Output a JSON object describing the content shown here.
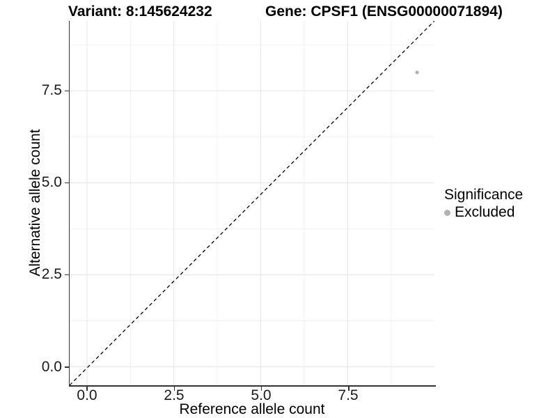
{
  "titles": {
    "variant": "Variant: 8:145624232",
    "gene": "Gene: CPSF1 (ENSG00000071894)"
  },
  "axes": {
    "x": {
      "label": "Reference allele count",
      "tick_labels": [
        "0.0",
        "2.5",
        "5.0",
        "7.5"
      ]
    },
    "y": {
      "label": "Alternative allele count",
      "tick_labels": [
        "7.5",
        "5.0",
        "2.5",
        "0.0"
      ]
    }
  },
  "legend": {
    "title": "Significance",
    "items": [
      {
        "label": "Excluded",
        "marker_color": "#b3b3b3"
      }
    ]
  },
  "chart_data": {
    "type": "scatter",
    "title": "Variant: 8:145624232 | Gene: CPSF1 (ENSG00000071894)",
    "xlabel": "Reference allele count",
    "ylabel": "Alternative allele count",
    "xlim": [
      -0.5,
      10.0
    ],
    "ylim": [
      -0.5,
      9.4
    ],
    "x_major_ticks": [
      0.0,
      2.5,
      5.0,
      7.5
    ],
    "y_major_ticks": [
      0.0,
      2.5,
      5.0,
      7.5
    ],
    "x_minor_ticks": [
      1.25,
      3.75,
      6.25,
      8.75
    ],
    "y_minor_ticks": [
      1.25,
      3.75,
      6.25,
      8.75
    ],
    "grid": true,
    "legend_position": "right",
    "series": [
      {
        "name": "Excluded",
        "color": "#b3b3b3",
        "marker": "circle",
        "point_radius": 2.6,
        "points": [
          {
            "x": 9.5,
            "y": 8.0
          }
        ]
      }
    ],
    "reference_line": {
      "type": "identity",
      "slope": 1,
      "intercept": 0,
      "style": "dashed",
      "color": "#000000"
    },
    "colors": {
      "grid_major": "#e6e6e6",
      "grid_minor": "#f2f2f2",
      "axis": "#333333",
      "background": "#ffffff"
    }
  }
}
